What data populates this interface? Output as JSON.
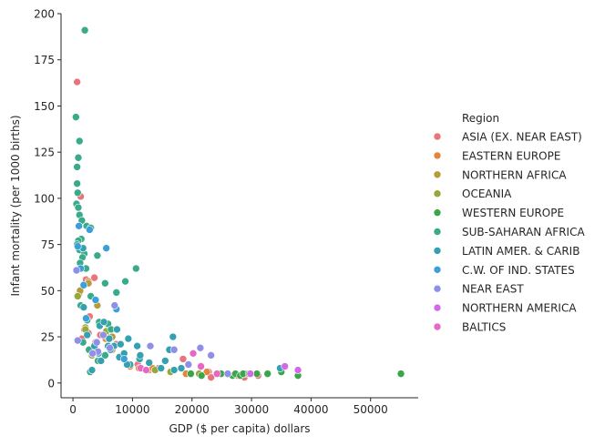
{
  "chart_data": {
    "type": "scatter",
    "title": "",
    "xlabel": "GDP ($ per capita) dollars",
    "ylabel": "Infant mortality (per 1000 births)",
    "xlim": [
      -2000,
      58000
    ],
    "ylim": [
      -8,
      200
    ],
    "xticks": [
      0,
      10000,
      20000,
      30000,
      40000,
      50000
    ],
    "xtick_labels": [
      "0",
      "10000",
      "20000",
      "30000",
      "40000",
      "50000"
    ],
    "yticks": [
      0,
      25,
      50,
      75,
      100,
      125,
      150,
      175,
      200
    ],
    "ytick_labels": [
      "0",
      "25",
      "50",
      "75",
      "100",
      "125",
      "150",
      "175",
      "200"
    ],
    "grid": false,
    "legend": {
      "title": "Region",
      "placement": "right"
    },
    "series": [
      {
        "name": "ASIA (EX. NEAR EAST)",
        "color": "#e8747c",
        "points": [
          [
            700,
            163
          ],
          [
            1300,
            101
          ],
          [
            1800,
            73
          ],
          [
            2200,
            56
          ],
          [
            3600,
            57
          ],
          [
            1000,
            48
          ],
          [
            2800,
            36
          ],
          [
            1900,
            29
          ],
          [
            2600,
            27
          ],
          [
            1500,
            24
          ],
          [
            4600,
            26
          ],
          [
            3300,
            15
          ],
          [
            7300,
            21
          ],
          [
            10900,
            10
          ],
          [
            12800,
            7
          ],
          [
            14400,
            8
          ],
          [
            18500,
            13
          ],
          [
            19000,
            5
          ],
          [
            22800,
            6
          ],
          [
            23200,
            3
          ],
          [
            27700,
            4
          ],
          [
            28800,
            3
          ],
          [
            31100,
            4
          ]
        ]
      },
      {
        "name": "EASTERN EUROPE",
        "color": "#e3853e",
        "points": [
          [
            2600,
            55
          ],
          [
            3800,
            22
          ],
          [
            5500,
            24
          ],
          [
            6600,
            18
          ],
          [
            9600,
            9
          ],
          [
            11100,
            8
          ],
          [
            13400,
            8
          ],
          [
            16800,
            7
          ],
          [
            19000,
            5
          ],
          [
            22500,
            6
          ]
        ]
      },
      {
        "name": "NORTHERN AFRICA",
        "color": "#b79a3c",
        "points": [
          [
            1200,
            50
          ],
          [
            2600,
            54
          ],
          [
            4100,
            42
          ],
          [
            5800,
            25
          ],
          [
            6600,
            25
          ],
          [
            2100,
            30
          ]
        ]
      },
      {
        "name": "OCEANIA",
        "color": "#95a83a",
        "points": [
          [
            800,
            47
          ],
          [
            2100,
            29
          ],
          [
            3200,
            15
          ],
          [
            5600,
            28
          ],
          [
            13800,
            7
          ],
          [
            16400,
            6
          ],
          [
            21200,
            5
          ],
          [
            29000,
            5
          ]
        ]
      },
      {
        "name": "WESTERN EUROPE",
        "color": "#3ca54a",
        "points": [
          [
            19800,
            5
          ],
          [
            21600,
            4
          ],
          [
            24900,
            5
          ],
          [
            26800,
            4
          ],
          [
            27300,
            5
          ],
          [
            28100,
            4
          ],
          [
            28600,
            5
          ],
          [
            29600,
            5
          ],
          [
            30900,
            5
          ],
          [
            32700,
            5
          ],
          [
            35000,
            6
          ],
          [
            37800,
            4
          ],
          [
            55100,
            5
          ]
        ]
      },
      {
        "name": "SUB-SAHARAN AFRICA",
        "color": "#3aab8a",
        "points": [
          [
            2000,
            191
          ],
          [
            500,
            144
          ],
          [
            1100,
            131
          ],
          [
            900,
            122
          ],
          [
            700,
            117
          ],
          [
            700,
            108
          ],
          [
            800,
            103
          ],
          [
            600,
            97
          ],
          [
            900,
            95
          ],
          [
            1100,
            91
          ],
          [
            1500,
            88
          ],
          [
            2300,
            85
          ],
          [
            3000,
            84
          ],
          [
            1400,
            78
          ],
          [
            900,
            77
          ],
          [
            700,
            75
          ],
          [
            1100,
            72
          ],
          [
            1900,
            70
          ],
          [
            1600,
            68
          ],
          [
            4100,
            69
          ],
          [
            1200,
            65
          ],
          [
            2200,
            62
          ],
          [
            7300,
            49
          ],
          [
            8800,
            55
          ],
          [
            10600,
            62
          ],
          [
            5400,
            54
          ],
          [
            3000,
            47
          ],
          [
            1300,
            42
          ],
          [
            2400,
            34
          ],
          [
            4400,
            33
          ],
          [
            5900,
            32
          ],
          [
            6400,
            29
          ],
          [
            1700,
            22
          ],
          [
            2700,
            18
          ],
          [
            5400,
            15
          ],
          [
            4200,
            12
          ],
          [
            2900,
            6
          ]
        ]
      },
      {
        "name": "LATIN AMER. & CARIB",
        "color": "#35a0af",
        "points": [
          [
            1700,
            73
          ],
          [
            4500,
            31
          ],
          [
            5200,
            33
          ],
          [
            6100,
            24
          ],
          [
            6900,
            20
          ],
          [
            7400,
            29
          ],
          [
            8000,
            21
          ],
          [
            9300,
            24
          ],
          [
            10800,
            20
          ],
          [
            16800,
            25
          ],
          [
            5900,
            20
          ],
          [
            7800,
            14
          ],
          [
            8600,
            16
          ],
          [
            9600,
            10
          ],
          [
            11200,
            13
          ],
          [
            12800,
            11
          ],
          [
            14800,
            8
          ],
          [
            15500,
            12
          ],
          [
            16200,
            18
          ],
          [
            17000,
            7
          ],
          [
            18200,
            8
          ],
          [
            3200,
            7
          ],
          [
            1800,
            41
          ],
          [
            2400,
            26
          ],
          [
            3600,
            20
          ],
          [
            4300,
            16
          ],
          [
            6300,
            18
          ],
          [
            9100,
            10
          ],
          [
            11300,
            15
          ],
          [
            34800,
            8
          ],
          [
            4700,
            12
          ]
        ]
      },
      {
        "name": "C.W. OF IND. STATES",
        "color": "#3b9fd8",
        "points": [
          [
            800,
            74
          ],
          [
            1300,
            62
          ],
          [
            1800,
            53
          ],
          [
            2800,
            83
          ],
          [
            3800,
            45
          ],
          [
            5600,
            73
          ],
          [
            7300,
            40
          ],
          [
            8600,
            13
          ],
          [
            1000,
            85
          ],
          [
            2200,
            35
          ]
        ]
      },
      {
        "name": "NEAR EAST",
        "color": "#8f8fe8",
        "points": [
          [
            600,
            61
          ],
          [
            800,
            23
          ],
          [
            4000,
            22
          ],
          [
            4200,
            17
          ],
          [
            5100,
            26
          ],
          [
            6200,
            19
          ],
          [
            7000,
            42
          ],
          [
            13000,
            20
          ],
          [
            17000,
            18
          ],
          [
            19400,
            10
          ],
          [
            21400,
            19
          ],
          [
            23200,
            15
          ],
          [
            26000,
            5
          ],
          [
            3300,
            16
          ]
        ]
      },
      {
        "name": "NORTHERN AMERICA",
        "color": "#d26ae8",
        "points": [
          [
            29800,
            5
          ],
          [
            35600,
            9
          ],
          [
            37800,
            7
          ]
        ]
      },
      {
        "name": "BALTICS",
        "color": "#e768c3",
        "points": [
          [
            11400,
            8
          ],
          [
            12300,
            7
          ],
          [
            20200,
            16
          ],
          [
            21500,
            9
          ],
          [
            24200,
            5
          ]
        ]
      }
    ]
  }
}
